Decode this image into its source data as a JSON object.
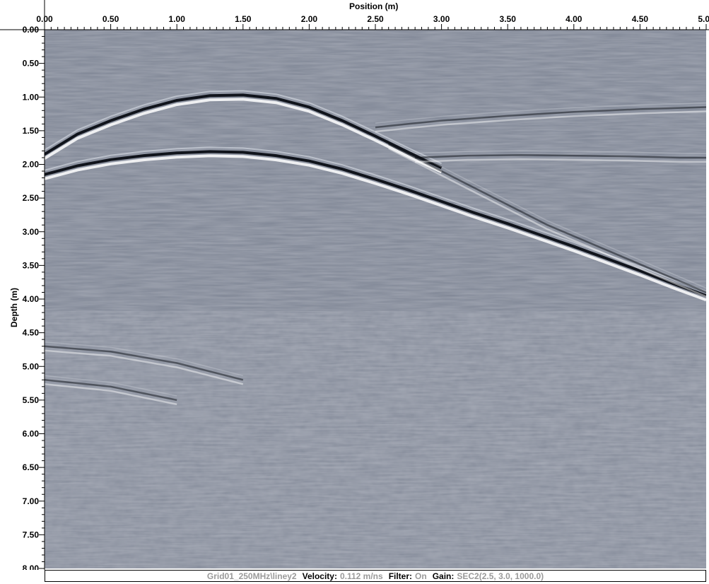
{
  "chart_data": {
    "type": "heatmap",
    "title": "",
    "xlabel": "Position (m)",
    "ylabel": "Depth (m)",
    "xlim": [
      0,
      5.0
    ],
    "ylim": [
      8.0,
      0.0
    ],
    "x_ticks": [
      "0.00",
      "0.50",
      "1.00",
      "1.50",
      "2.00",
      "2.50",
      "3.00",
      "3.50",
      "4.00",
      "4.50",
      "5.00"
    ],
    "x_tick_values": [
      0,
      0.5,
      1.0,
      1.5,
      2.0,
      2.5,
      3.0,
      3.5,
      4.0,
      4.5,
      5.0
    ],
    "y_ticks": [
      "0.00",
      "0.50",
      "1.00",
      "1.50",
      "2.00",
      "2.50",
      "3.00",
      "3.50",
      "4.00",
      "4.50",
      "5.00",
      "5.50",
      "6.00",
      "6.50",
      "7.00",
      "7.50",
      "8.00"
    ],
    "y_tick_values": [
      0,
      0.5,
      1.0,
      1.5,
      2.0,
      2.5,
      3.0,
      3.5,
      4.0,
      4.5,
      5.0,
      5.5,
      6.0,
      6.5,
      7.0,
      7.5,
      8.0
    ],
    "colormap": "grayscale",
    "background_color": "#7e8594",
    "series": [
      {
        "x": [
          0.0,
          0.25,
          0.5,
          0.75,
          1.0,
          1.25,
          1.5,
          1.75,
          2.0,
          2.25,
          2.5,
          2.75,
          3.0
        ],
        "y": [
          1.85,
          1.55,
          1.35,
          1.18,
          1.05,
          0.98,
          0.97,
          1.02,
          1.15,
          1.35,
          1.58,
          1.82,
          2.05
        ]
      },
      {
        "x": [
          0.0,
          0.25,
          0.5,
          0.75,
          1.0,
          1.25,
          1.5,
          1.75,
          2.0,
          2.25,
          2.5,
          2.75,
          3.0,
          3.25,
          3.5,
          3.75,
          4.0,
          4.25,
          4.5,
          4.75,
          5.0
        ],
        "y": [
          2.15,
          2.02,
          1.93,
          1.87,
          1.83,
          1.81,
          1.82,
          1.87,
          1.95,
          2.07,
          2.22,
          2.38,
          2.55,
          2.72,
          2.88,
          3.05,
          3.22,
          3.4,
          3.58,
          3.77,
          3.95
        ]
      },
      {
        "x": [
          2.6,
          2.9,
          3.2,
          3.5,
          3.8,
          4.1,
          4.4,
          4.7,
          5.0
        ],
        "y": [
          1.7,
          2.0,
          2.3,
          2.6,
          2.9,
          3.15,
          3.4,
          3.65,
          3.9
        ]
      },
      {
        "x": [
          2.5,
          2.75,
          3.0,
          3.5,
          4.0,
          4.5,
          5.0
        ],
        "y": [
          1.45,
          1.4,
          1.35,
          1.28,
          1.22,
          1.18,
          1.15
        ]
      },
      {
        "x": [
          2.8,
          3.2,
          3.6,
          4.0,
          4.4,
          4.8,
          5.0
        ],
        "y": [
          1.9,
          1.87,
          1.86,
          1.87,
          1.88,
          1.9,
          1.9
        ]
      },
      {
        "x": [
          0.0,
          0.5,
          1.0,
          1.5
        ],
        "y": [
          4.7,
          4.78,
          4.95,
          5.2
        ]
      },
      {
        "x": [
          0.0,
          0.5,
          1.0
        ],
        "y": [
          5.2,
          5.3,
          5.5
        ]
      }
    ]
  },
  "status_bar": {
    "file": "Grid01_250MHz\\liney2",
    "velocity_label": "Velocity:",
    "velocity_value": "0.112 m/ns",
    "filter_label": "Filter:",
    "filter_value": "On",
    "gain_label": "Gain:",
    "gain_value": "SEC2(2.5, 3.0, 1000.0)"
  }
}
